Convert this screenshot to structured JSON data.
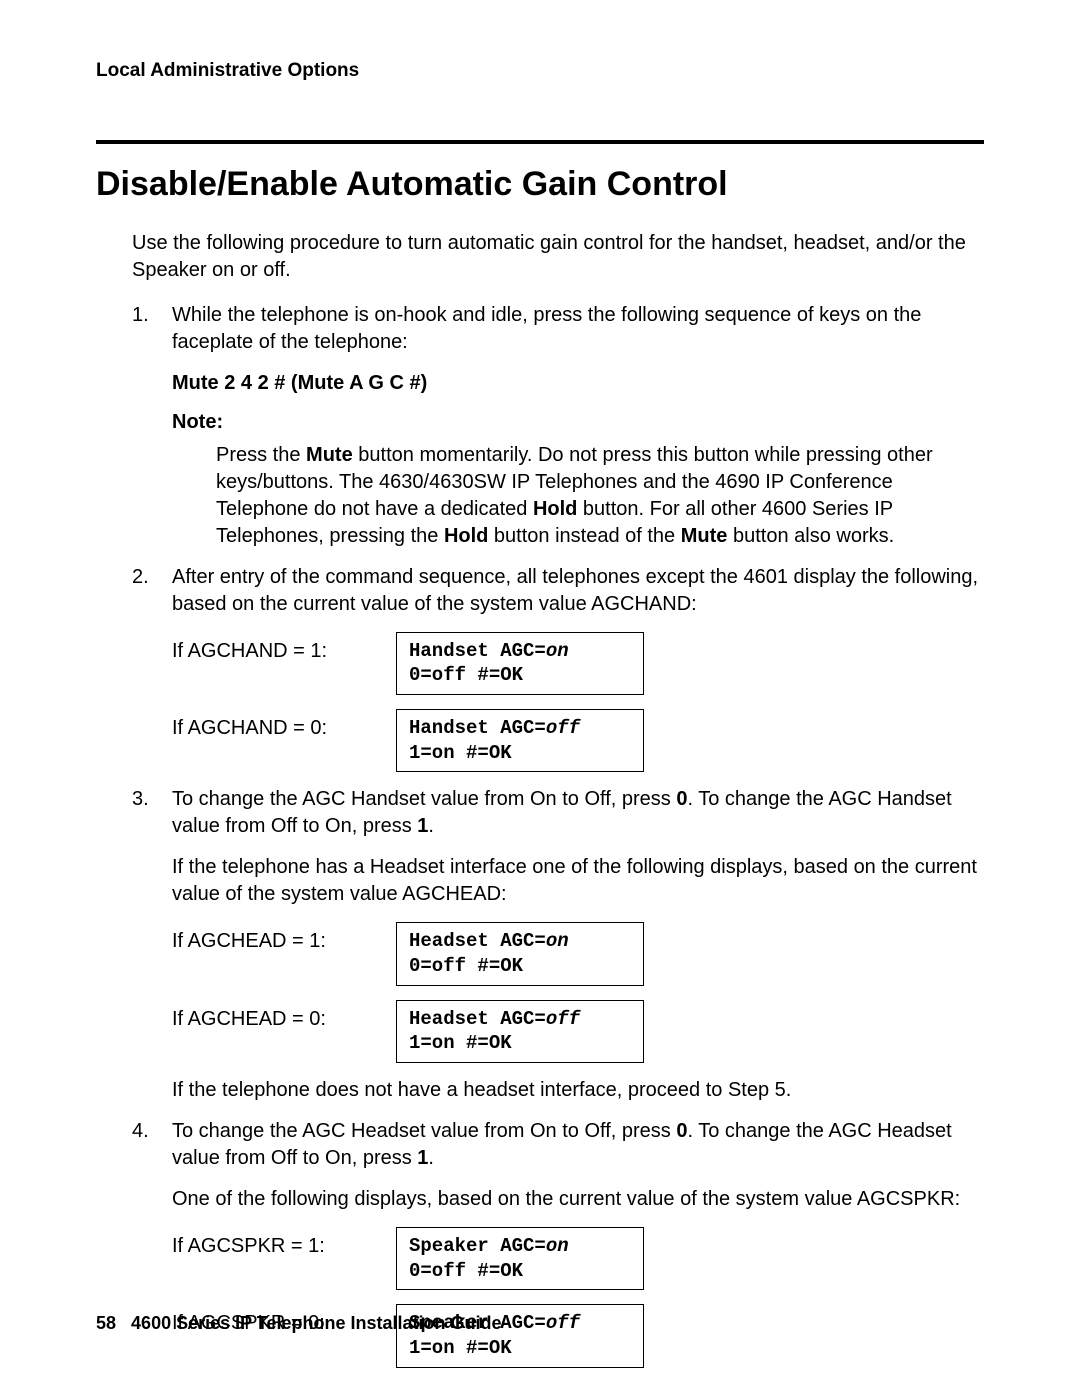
{
  "header": {
    "running": "Local Administrative Options"
  },
  "title": "Disable/Enable Automatic Gain Control",
  "intro": "Use the following procedure to turn automatic gain control for the handset, headset, and/or the Speaker on or off.",
  "steps": {
    "s1": {
      "num": "1.",
      "text": "While the telephone is on-hook and idle, press the following sequence of keys on the faceplate of the telephone:",
      "seq": "Mute 2 4 2 # (Mute A G C #)",
      "note_label": "Note:",
      "note_pre": "Press the ",
      "note_b1": "Mute",
      "note_mid1": " button momentarily. Do not press this button while pressing other keys/buttons. The 4630/4630SW IP Telephones and the 4690 IP Conference Telephone do not have a dedicated ",
      "note_b2": "Hold",
      "note_mid2": " button. For all other 4600 Series IP Telephones, pressing the ",
      "note_b3": "Hold",
      "note_mid3": " button instead of the ",
      "note_b4": "Mute",
      "note_end": " button also works."
    },
    "s2": {
      "num": "2.",
      "text": "After entry of the command sequence, all telephones except the 4601 display the following, based on the current value of the system value AGCHAND:",
      "row1_label": "If AGCHAND = 1:",
      "row1_line1a": "Handset AGC=",
      "row1_line1b": "on",
      "row1_line2": "0=off #=OK",
      "row2_label": "If AGCHAND = 0:",
      "row2_line1a": "Handset AGC=",
      "row2_line1b": "off",
      "row2_line2": "1=on #=OK"
    },
    "s3": {
      "num": "3.",
      "pre": "To change the AGC Handset value from On to Off, press ",
      "b0": "0",
      "mid": ". To change the AGC Handset value from Off to On, press ",
      "b1": "1",
      "end": ".",
      "para2": "If the telephone has a Headset interface one of the following displays, based on the current value of the system value AGCHEAD:",
      "row1_label": "If AGCHEAD = 1:",
      "row1_line1a": "Headset AGC=",
      "row1_line1b": "on",
      "row1_line2": "0=off #=OK",
      "row2_label": "If AGCHEAD = 0:",
      "row2_line1a": "Headset AGC=",
      "row2_line1b": "off",
      "row2_line2": "1=on #=OK",
      "para3": "If the telephone does not have a headset interface, proceed to Step 5."
    },
    "s4": {
      "num": "4.",
      "pre": "To change the AGC Headset value from On to Off, press ",
      "b0": "0",
      "mid": ". To change the AGC Headset value from Off to On, press ",
      "b1": "1",
      "end": ".",
      "para2": "One of the following displays, based on the current value of the system value AGCSPKR:",
      "row1_label": "If AGCSPKR = 1:",
      "row1_line1a": "Speaker AGC=",
      "row1_line1b": "on",
      "row1_line2": "0=off #=OK",
      "row2_label": "If AGCSPKR = 0:",
      "row2_line1a": "Speaker AGC=",
      "row2_line1b": "off",
      "row2_line2": "1=on #=OK"
    }
  },
  "footer": {
    "pagenum": "58",
    "title": "4600 Series IP Telephone Installation Guide"
  }
}
